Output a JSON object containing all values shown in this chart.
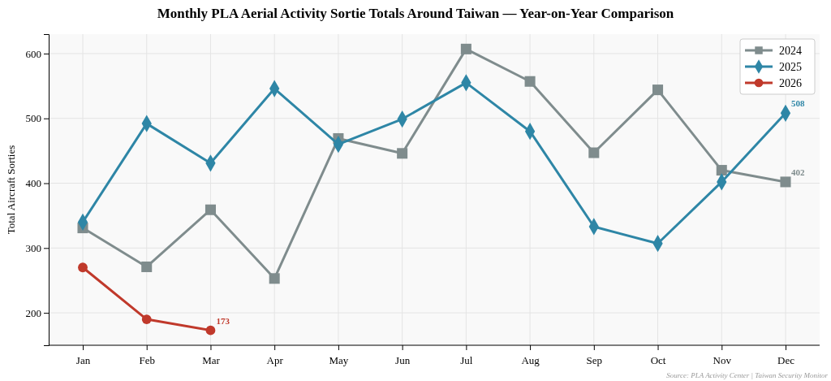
{
  "chart_data": {
    "type": "line",
    "title": "Monthly PLA Aerial Activity Sortie Totals Around Taiwan — Year-on-Year Comparison",
    "ylabel": "Total Aircraft Sorties",
    "categories": [
      "Jan",
      "Feb",
      "Mar",
      "Apr",
      "May",
      "Jun",
      "Jul",
      "Aug",
      "Sep",
      "Oct",
      "Nov",
      "Dec"
    ],
    "series": [
      {
        "name": "2024",
        "color": "#7f8c8d",
        "marker": "square",
        "values": [
          331,
          271,
          359,
          253,
          469,
          446,
          607,
          557,
          447,
          544,
          420,
          402
        ],
        "value_labels": [
          null,
          null,
          null,
          null,
          null,
          null,
          null,
          null,
          null,
          null,
          null,
          "402"
        ]
      },
      {
        "name": "2025",
        "color": "#2e86a6",
        "marker": "diamond",
        "values": [
          340,
          492,
          431,
          546,
          460,
          499,
          555,
          480,
          333,
          307,
          402,
          508
        ],
        "value_labels": [
          null,
          null,
          null,
          null,
          null,
          null,
          null,
          null,
          null,
          null,
          null,
          "508"
        ]
      },
      {
        "name": "2026",
        "color": "#c0392b",
        "marker": "circle",
        "values": [
          270,
          190,
          173,
          null,
          null,
          null,
          null,
          null,
          null,
          null,
          null,
          null
        ],
        "value_labels": [
          null,
          null,
          "173",
          null,
          null,
          null,
          null,
          null,
          null,
          null,
          null,
          null
        ]
      }
    ],
    "ylim": [
      150,
      630
    ],
    "yticks": [
      200,
      300,
      400,
      500,
      600
    ],
    "grid": true,
    "legend": "top right",
    "line_style": "solid",
    "annotations": [
      "Source: PLA Activity Center | Taiwan Security Monitor"
    ]
  }
}
